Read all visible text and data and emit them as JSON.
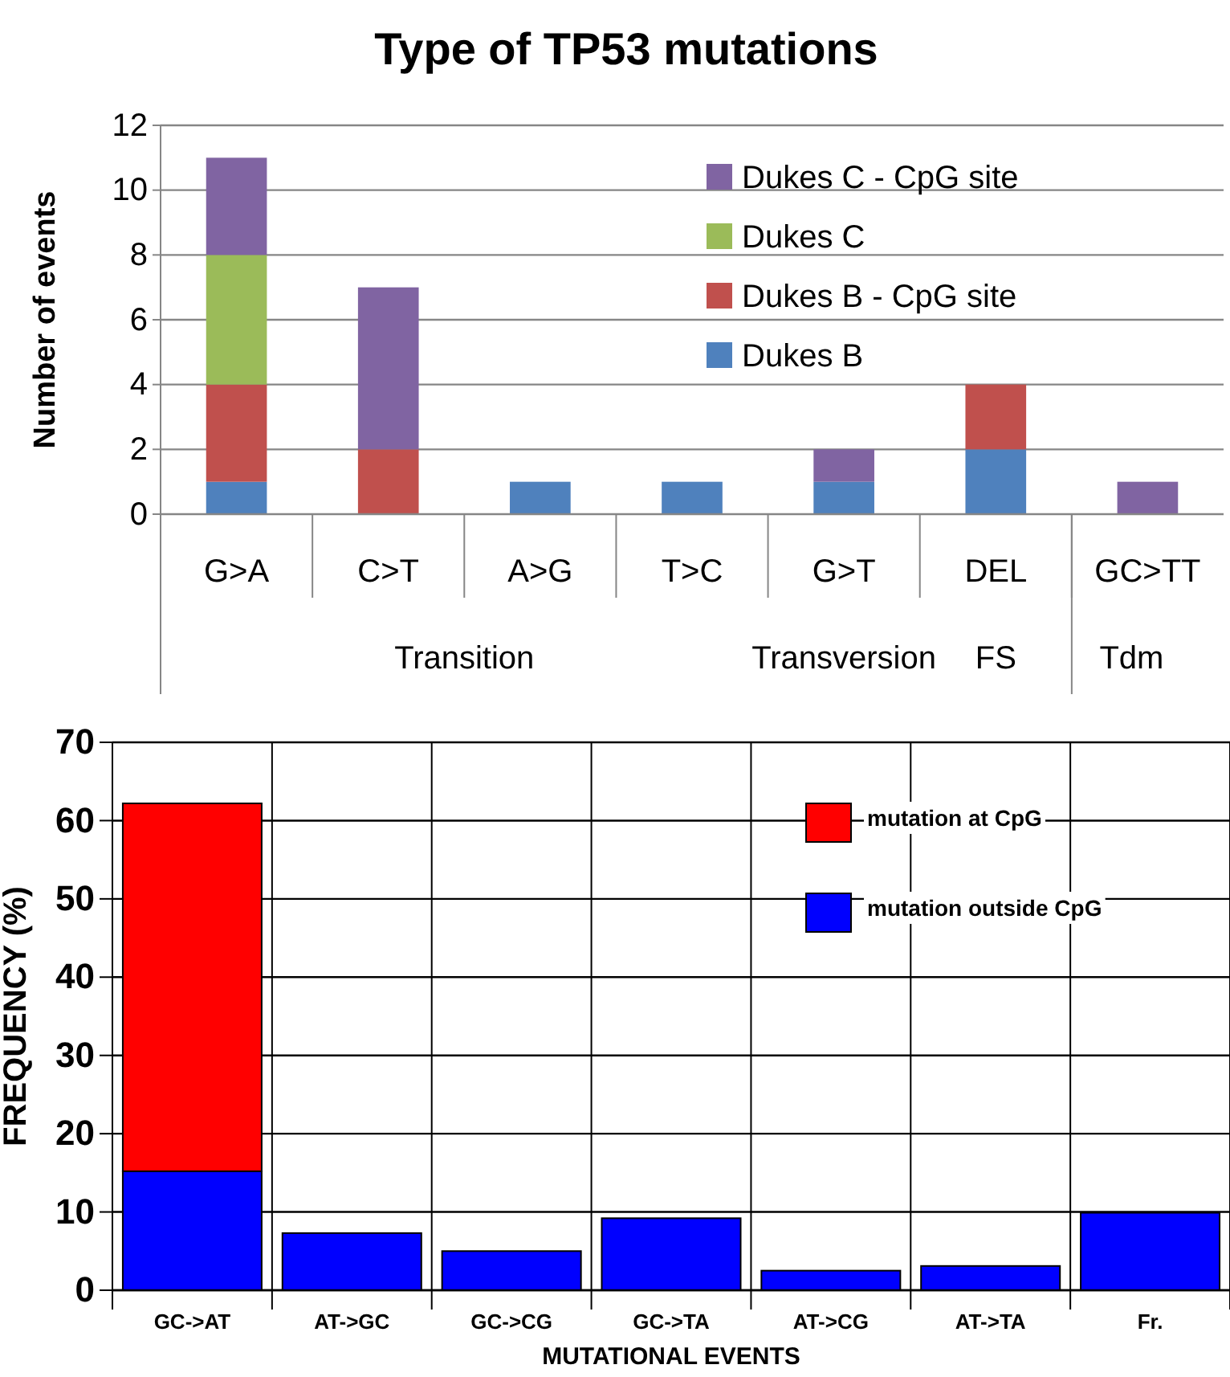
{
  "chart_data": [
    {
      "type": "bar",
      "title": "Type of TP53 mutations",
      "ylabel": "Number of events",
      "stacked": true,
      "categories": [
        "G>A",
        "C>T",
        "A>G",
        "T>C",
        "G>T",
        "DEL",
        "GC>TT"
      ],
      "series": [
        {
          "name": "Dukes B",
          "color": "#4f81bd",
          "values": [
            1,
            0,
            1,
            1,
            1,
            2,
            0
          ]
        },
        {
          "name": "Dukes B - CpG site",
          "color": "#c0504d",
          "values": [
            3,
            2,
            0,
            0,
            0,
            2,
            0
          ]
        },
        {
          "name": "Dukes C",
          "color": "#9bbb59",
          "values": [
            4,
            0,
            0,
            0,
            0,
            0,
            0
          ]
        },
        {
          "name": "Dukes C - CpG site",
          "color": "#8064a2",
          "values": [
            3,
            5,
            0,
            0,
            1,
            0,
            1
          ]
        }
      ],
      "ylim": [
        0,
        12
      ],
      "yticks": [
        0,
        2,
        4,
        6,
        8,
        10,
        12
      ],
      "grid": "y",
      "legend": "top right",
      "annotations": [
        "Transition",
        "Transversion",
        "FS",
        "Tdm"
      ]
    },
    {
      "type": "bar",
      "xlabel": "MUTATIONAL EVENTS",
      "ylabel": "FREQUENCY (%)",
      "stacked": true,
      "categories": [
        "GC->AT",
        "AT->GC",
        "GC->CG",
        "GC->TA",
        "AT->CG",
        "AT->TA",
        "Fr."
      ],
      "series": [
        {
          "name": "mutation outside CpG",
          "color": "#0000ff",
          "values": [
            15.2,
            7.3,
            5,
            9.2,
            2.5,
            3.1,
            9.9
          ]
        },
        {
          "name": "mutation at CpG",
          "color": "#ff0000",
          "values": [
            47,
            0,
            0,
            0,
            0,
            0,
            0
          ]
        }
      ],
      "ylim": [
        0,
        70
      ],
      "yticks": [
        0,
        10,
        20,
        30,
        40,
        50,
        60,
        70
      ],
      "grid": true,
      "legend": "top right"
    }
  ]
}
